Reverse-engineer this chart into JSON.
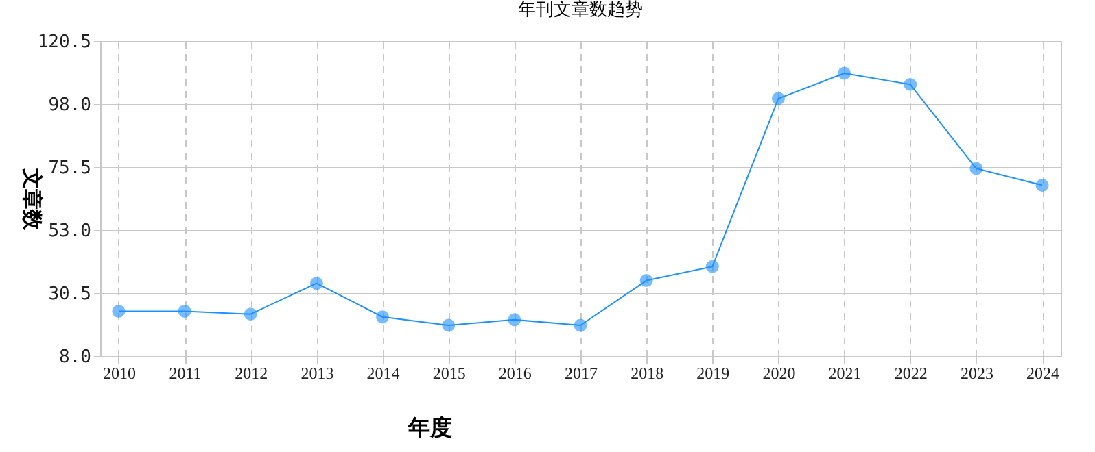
{
  "chart_data": {
    "type": "line",
    "title": "年刊文章数趋势",
    "xlabel": "年度",
    "ylabel": "文章数",
    "categories": [
      "2010",
      "2011",
      "2012",
      "2013",
      "2014",
      "2015",
      "2016",
      "2017",
      "2018",
      "2019",
      "2020",
      "2021",
      "2022",
      "2023",
      "2024"
    ],
    "series": [
      {
        "color": "#1e90ff",
        "values": [
          24,
          24,
          23,
          34,
          22,
          19,
          21,
          19,
          35,
          40,
          100,
          109,
          105,
          75,
          69
        ]
      }
    ],
    "ylim": [
      8.0,
      120.5
    ],
    "yticks": [
      {
        "value": 8,
        "label": "8.0"
      },
      30.5,
      {
        "value": 98,
        "label": "98.0"
      },
      {
        "value": 53,
        "label": "53.0"
      },
      75.5,
      120.5
    ],
    "grid": true,
    "marker": "circle",
    "line_style": "solid",
    "legend": false
  }
}
